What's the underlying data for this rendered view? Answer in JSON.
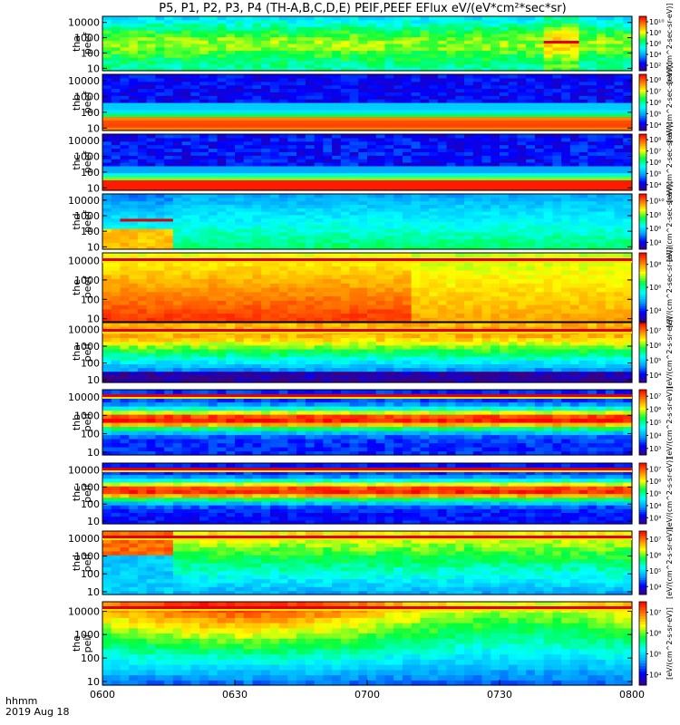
{
  "chart_data": {
    "type": "heatmap",
    "title": "P5, P1, P2, P3, P4 (TH-A,B,C,D,E) PEIF,PEEF EFlux eV/(eV*cm²*sec*sr)",
    "x_ticks": [
      "0600",
      "0630",
      "0700",
      "0730",
      "0800"
    ],
    "x_range_minutes": [
      0,
      120
    ],
    "x_corner_label": "hhmm",
    "date_label": "2019 Aug 18",
    "y_scale": "log",
    "y_ticks": [
      "10",
      "100",
      "1000",
      "10000"
    ],
    "y_range_eV": [
      7,
      25000
    ],
    "colorbar_label_electron": "[eV/(cm^2-sec-sr-eV)]",
    "colorbar_label_ion": "[eV/(cm^2-s-sr-eV)]",
    "colormap": [
      "#3a0080",
      "#0000ff",
      "#00a0ff",
      "#00ffff",
      "#00ff40",
      "#ffff00",
      "#ff8000",
      "#ff0000"
    ],
    "panels": [
      {
        "probe": "tha",
        "product": "peef",
        "cb_ticks": [
          "10²",
          "10⁴",
          "10⁶",
          "10⁸",
          "10¹⁰"
        ],
        "cb_range": [
          2,
          10
        ],
        "flags": [
          [
            100,
            108
          ]
        ]
      },
      {
        "probe": "thb",
        "product": "peef",
        "cb_ticks": [
          "10⁴",
          "10⁵",
          "10⁶",
          "10⁷",
          "10⁸"
        ],
        "cb_range": [
          3.5,
          8.5
        ],
        "flags": []
      },
      {
        "probe": "thc",
        "product": "peef",
        "cb_ticks": [
          "10⁴",
          "10⁵",
          "10⁶",
          "10⁷",
          "10⁸"
        ],
        "cb_range": [
          3.5,
          8.5
        ],
        "flags": []
      },
      {
        "probe": "thd",
        "product": "peef",
        "cb_ticks": [
          "10⁴",
          "10⁶",
          "10⁸",
          "10¹⁰"
        ],
        "cb_range": [
          3,
          10.5
        ],
        "flags": [
          [
            4,
            16
          ]
        ]
      },
      {
        "probe": "the",
        "product": "peef",
        "cb_ticks": [
          "10⁴",
          "10⁶",
          "10⁸"
        ],
        "cb_range": [
          3,
          9
        ],
        "flags": []
      },
      {
        "probe": "tha",
        "product": "peif",
        "cb_ticks": [
          "10⁴",
          "10⁵",
          "10⁶",
          "10⁷"
        ],
        "cb_range": [
          3.5,
          7.5
        ],
        "flags": []
      },
      {
        "probe": "thb",
        "product": "peif",
        "cb_ticks": [
          "10³",
          "10⁴",
          "10⁵",
          "10⁶",
          "10⁷"
        ],
        "cb_range": [
          2.5,
          7.5
        ],
        "flags": []
      },
      {
        "probe": "thc",
        "product": "peif",
        "cb_ticks": [
          "10³",
          "10⁴",
          "10⁵",
          "10⁶",
          "10⁷"
        ],
        "cb_range": [
          2.5,
          7.5
        ],
        "flags": []
      },
      {
        "probe": "thd",
        "product": "peif",
        "cb_ticks": [
          "10⁴",
          "10⁵",
          "10⁶",
          "10⁷"
        ],
        "cb_range": [
          3.5,
          7.5
        ],
        "flags": []
      },
      {
        "probe": "the",
        "product": "peif",
        "cb_ticks": [
          "10⁴",
          "10⁵",
          "10⁶",
          "10⁷"
        ],
        "cb_range": [
          3.5,
          7.5
        ],
        "flags": []
      }
    ]
  }
}
